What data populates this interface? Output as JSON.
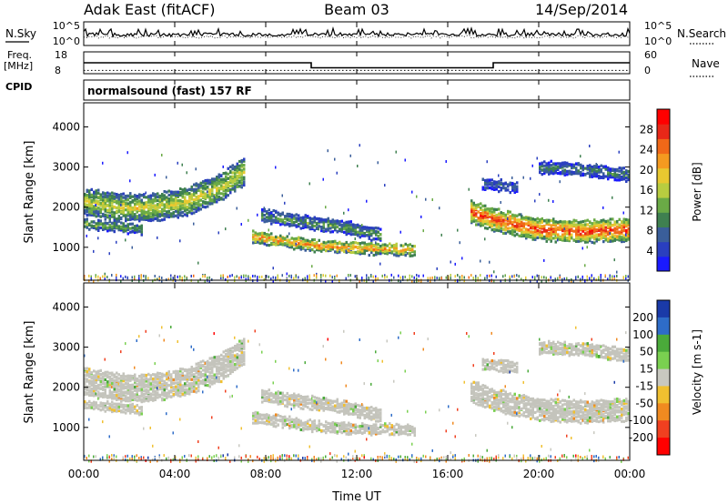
{
  "header": {
    "station": "Adak East (fitACF)",
    "beam": "Beam 03",
    "date": "14/Sep/2014"
  },
  "top_panels": {
    "nsky_label": "N.Sky",
    "nsky_ticks": [
      "10^5",
      "10^0"
    ],
    "nsearch_label": "N.Search",
    "nsearch_ticks": [
      "10^5",
      "10^0"
    ],
    "freq_label": "Freq.",
    "freq_unit": "[MHz]",
    "freq_ticks": [
      "18",
      "8"
    ],
    "nave_label": "Nave",
    "nave_ticks": [
      "60",
      "0"
    ],
    "cpid_label": "CPID",
    "cpid_text": "normalsound (fast) 157 RF"
  },
  "chart_data": [
    {
      "type": "heatmap",
      "panel": "power",
      "ylabel": "Slant Range [km]",
      "xlabel": "Time UT",
      "x_ticks": [
        "00:00",
        "04:00",
        "08:00",
        "12:00",
        "16:00",
        "20:00",
        "00:00"
      ],
      "xlim_hours": [
        0,
        24
      ],
      "y_ticks": [
        "1000",
        "2000",
        "3000",
        "4000"
      ],
      "ylim": [
        180,
        4600
      ],
      "colorbar": {
        "label": "Power [dB]",
        "ticks": [
          "4",
          "8",
          "12",
          "16",
          "20",
          "24",
          "28"
        ],
        "range": [
          0,
          32
        ],
        "colors": [
          "#1a1aff",
          "#2a3fbf",
          "#3a5e9a",
          "#3f8050",
          "#6aaa46",
          "#b8cc40",
          "#e8c830",
          "#f49a20",
          "#f06818",
          "#e82818",
          "#ff0000"
        ]
      },
      "echo_bands": [
        {
          "t": [
            0.0,
            1.5,
            3.0,
            4.5,
            6.0,
            7.0
          ],
          "center_km": [
            2150,
            2000,
            2000,
            2150,
            2500,
            2900
          ],
          "width_km": 650,
          "peak_db": 18
        },
        {
          "t": [
            0.0,
            2.5
          ],
          "center_km": [
            1600,
            1450
          ],
          "width_km": 220,
          "peak_db": 14
        },
        {
          "t": [
            7.3,
            10.0,
            12.0,
            14.5
          ],
          "center_km": [
            1280,
            1060,
            980,
            950
          ],
          "width_km": 260,
          "peak_db": 24
        },
        {
          "t": [
            7.8,
            9.5,
            11.5,
            13.0
          ],
          "center_km": [
            1800,
            1650,
            1500,
            1300
          ],
          "width_km": 280,
          "peak_db": 12
        },
        {
          "t": [
            17.0,
            18.0,
            20.0,
            22.0,
            24.0
          ],
          "center_km": [
            1900,
            1700,
            1450,
            1400,
            1450
          ],
          "width_km": 520,
          "peak_db": 28
        },
        {
          "t": [
            20.0,
            22.0,
            24.0
          ],
          "center_km": [
            3000,
            2950,
            2800
          ],
          "width_km": 300,
          "peak_db": 10
        },
        {
          "t": [
            17.5,
            19.0
          ],
          "center_km": [
            2600,
            2500
          ],
          "width_km": 250,
          "peak_db": 8
        }
      ]
    },
    {
      "type": "heatmap",
      "panel": "velocity",
      "ylabel": "Slant Range [km]",
      "xlabel": "Time UT",
      "x_ticks": [
        "00:00",
        "04:00",
        "08:00",
        "12:00",
        "16:00",
        "20:00",
        "00:00"
      ],
      "xlim_hours": [
        0,
        24
      ],
      "y_ticks": [
        "1000",
        "2000",
        "3000",
        "4000"
      ],
      "ylim": [
        180,
        4600
      ],
      "colorbar": {
        "label": "Velocity [m s-1]",
        "ticks": [
          "200",
          "100",
          "50",
          "15",
          "-15",
          "-50",
          "-100",
          "-200"
        ],
        "range": [
          -250,
          250
        ],
        "colors": [
          "#1a3aa8",
          "#2e6cc8",
          "#4aaa3a",
          "#7ad050",
          "#c8c8c0",
          "#f0c030",
          "#f08a20",
          "#f04020",
          "#ff0000"
        ]
      },
      "ground_scatter_color": "#c4c4bc"
    }
  ],
  "time_series": {
    "frequency_mhz": {
      "t": [
        0,
        10,
        10,
        18,
        18,
        24
      ],
      "v": [
        13,
        13,
        10.5,
        10.5,
        13,
        13
      ]
    },
    "nave": {
      "t": [
        0,
        24
      ],
      "v": [
        7,
        7
      ]
    }
  }
}
